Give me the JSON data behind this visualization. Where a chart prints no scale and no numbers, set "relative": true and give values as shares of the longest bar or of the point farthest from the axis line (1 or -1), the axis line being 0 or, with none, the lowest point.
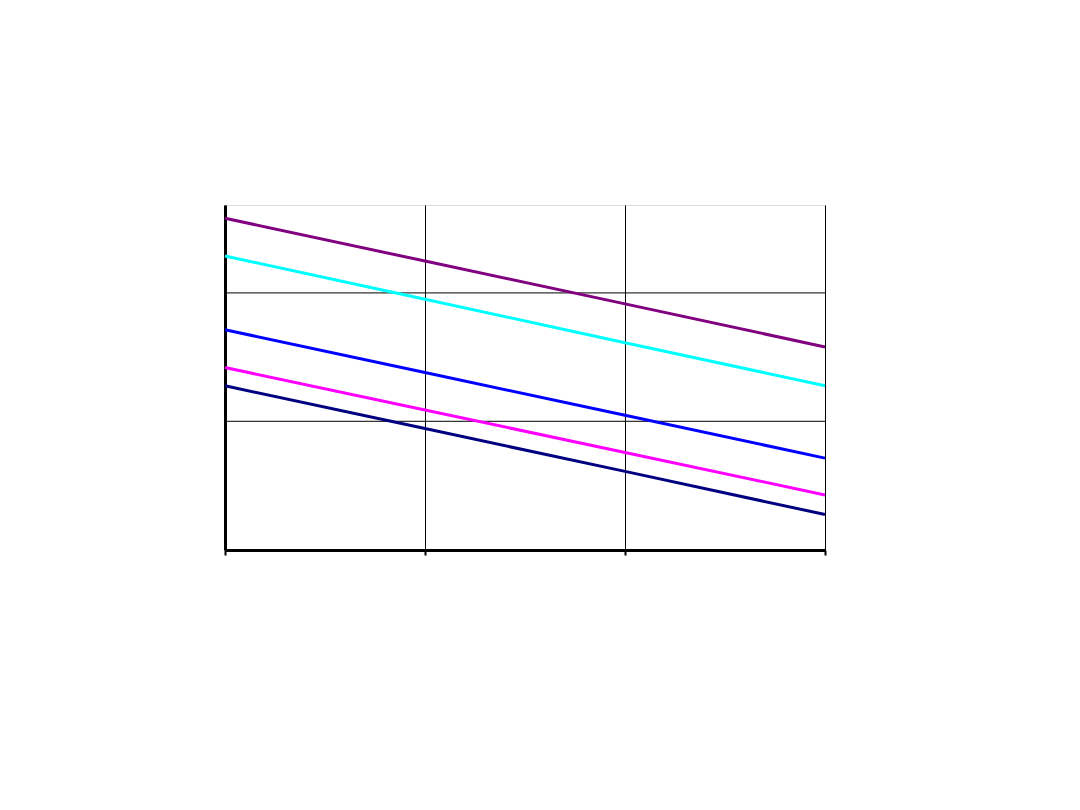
{
  "chart_data": {
    "type": "line",
    "relative": true,
    "categories": [
      null,
      null,
      null,
      null
    ],
    "grid": "x",
    "series": [
      {
        "color": "#800080",
        "values": [
          1,
          0.871,
          0.742,
          0.612
        ]
      },
      {
        "color": "#00ffff",
        "values": [
          0.886,
          0.756,
          0.625,
          0.495
        ]
      },
      {
        "color": "#0000ff",
        "values": [
          0.664,
          0.535,
          0.406,
          0.277
        ]
      },
      {
        "color": "#ff00ff",
        "values": [
          0.55,
          0.422,
          0.294,
          0.166
        ]
      },
      {
        "color": "#000080",
        "values": [
          0.495,
          0.366,
          0.237,
          0.107
        ]
      }
    ],
    "ref_lines": [
      {
        "axis": "y",
        "value": 0.775,
        "color": "#000000"
      },
      {
        "axis": "y",
        "value": 0.388,
        "color": "#000000"
      }
    ]
  }
}
